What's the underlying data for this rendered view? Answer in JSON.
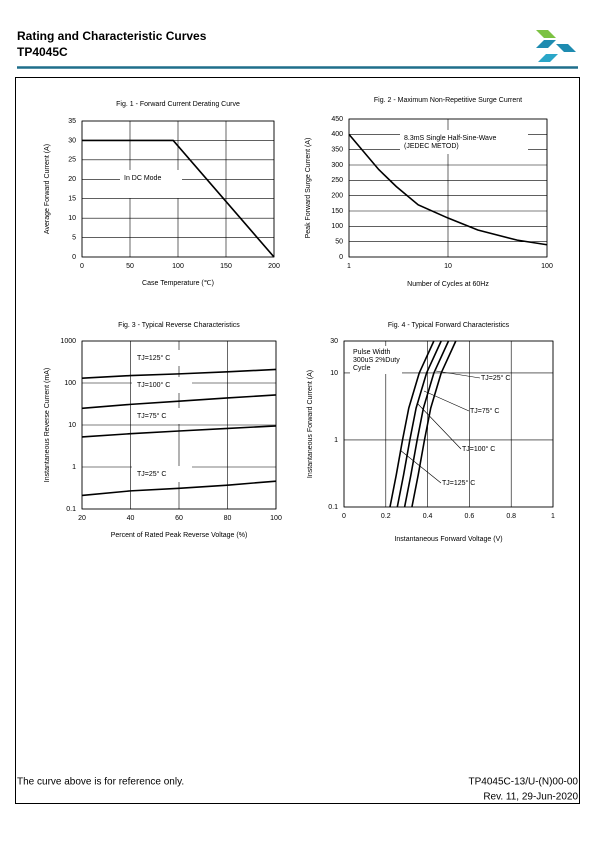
{
  "header": {
    "title": "Rating and Characteristic Curves",
    "part": "TP4045C"
  },
  "chart_data": [
    {
      "type": "line",
      "title": "Fig. 1 - Forward Current Derating Curve",
      "x_label": "Case Temperature (℃)",
      "y_label": "Average Forward Current (A)",
      "x": [
        0,
        95,
        200
      ],
      "values": [
        30,
        30,
        0
      ],
      "color": "#000000",
      "xlim": [
        0,
        200
      ],
      "xticks": [
        0,
        50,
        100,
        150,
        200
      ],
      "ylim": [
        0,
        35
      ],
      "yticks": [
        0,
        5,
        10,
        15,
        20,
        25,
        30,
        35
      ],
      "grid": true,
      "annotations": [
        "In DC Mode"
      ]
    },
    {
      "type": "line",
      "title": "Fig. 2 - Maximum Non-Repetitive Surge Current",
      "x_label": "Number of Cycles at 60Hz",
      "y_label": "Peak Forward Surge Current (A)",
      "x": [
        1,
        2,
        3,
        5,
        10,
        20,
        50,
        100
      ],
      "values": [
        400,
        285,
        230,
        170,
        127,
        88,
        55,
        40
      ],
      "color": "#000000",
      "xscale": "log",
      "xlim": [
        1,
        100
      ],
      "xticks": [
        1,
        10,
        100
      ],
      "ylim": [
        0,
        450
      ],
      "yticks": [
        0,
        50,
        100,
        150,
        200,
        250,
        300,
        350,
        400,
        450
      ],
      "grid": true,
      "annotations": [
        "8.3mS Single Half-Sine-Wave",
        "(JEDEC METOD)"
      ]
    },
    {
      "type": "line",
      "title": "Fig. 3 - Typical Reverse Characteristics",
      "x_label": "Percent of Rated Peak Reverse Voltage (%)",
      "y_label": "Instantaneous Reverse Current  (mA)",
      "x": [
        20,
        40,
        60,
        80,
        100
      ],
      "series": [
        {
          "name": "TJ=125° C",
          "color": "#000000",
          "values": [
            130,
            150,
            165,
            185,
            210
          ]
        },
        {
          "name": "TJ=100° C",
          "color": "#000000",
          "values": [
            25,
            31,
            37,
            44,
            52
          ]
        },
        {
          "name": "TJ=75° C",
          "color": "#000000",
          "values": [
            5.2,
            6.2,
            7.2,
            8.3,
            9.5
          ]
        },
        {
          "name": "TJ=25° C",
          "color": "#000000",
          "values": [
            0.21,
            0.27,
            0.31,
            0.37,
            0.46
          ]
        }
      ],
      "yscale": "log",
      "xlim": [
        20,
        100
      ],
      "xticks": [
        20,
        40,
        60,
        80,
        100
      ],
      "ylim": [
        0.1,
        1000
      ],
      "yticks": [
        0.1,
        1,
        10,
        100,
        1000
      ],
      "grid": true
    },
    {
      "type": "line",
      "title": "Fig. 4 - Typical Forward Characteristics",
      "x_label": "Instantaneous Forward Voltage (V)",
      "y_label": "Instantaneous Forward Current (A)",
      "series": [
        {
          "name": "TJ=25° C",
          "color": "#000000",
          "x": [
            0.325,
            0.355,
            0.385,
            0.415,
            0.465,
            0.535
          ],
          "values": [
            0.1,
            0.3,
            1,
            3,
            10,
            30
          ]
        },
        {
          "name": "TJ=75° C",
          "color": "#000000",
          "x": [
            0.29,
            0.32,
            0.35,
            0.38,
            0.43,
            0.5
          ],
          "values": [
            0.1,
            0.3,
            1,
            3,
            10,
            30
          ]
        },
        {
          "name": "TJ=100° C",
          "color": "#000000",
          "x": [
            0.255,
            0.285,
            0.315,
            0.345,
            0.395,
            0.465
          ],
          "values": [
            0.1,
            0.3,
            1,
            3,
            10,
            30
          ]
        },
        {
          "name": "TJ=125° C",
          "color": "#000000",
          "x": [
            0.22,
            0.25,
            0.28,
            0.31,
            0.36,
            0.43
          ],
          "values": [
            0.1,
            0.3,
            1,
            3,
            10,
            30
          ]
        }
      ],
      "yscale": "log",
      "xlim": [
        0,
        1
      ],
      "xticks": [
        0,
        0.2,
        0.4,
        0.6,
        0.8,
        1
      ],
      "ylim": [
        0.1,
        30
      ],
      "yticks": [
        0.1,
        1,
        10,
        30
      ],
      "grid": true,
      "annotations": [
        "Pulse Width",
        "300uS 2%Duty",
        "Cycle"
      ]
    }
  ],
  "footer": {
    "note": "The curve above is for reference only.",
    "doc": "TP4045C-13/U-(N)00-00",
    "rev": "Rev. 11, 29-Jun-2020"
  }
}
